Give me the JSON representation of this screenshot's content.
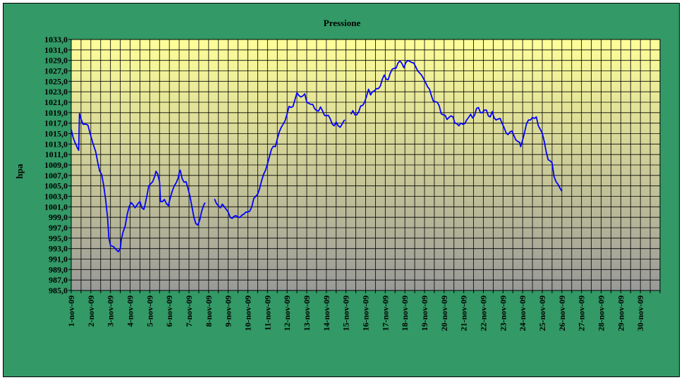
{
  "chart_data": {
    "type": "line",
    "title": "Pressione",
    "xlabel": "",
    "ylabel": "hpa",
    "ylim": [
      985,
      1033
    ],
    "yticks": [
      "1033,0",
      "1031,0",
      "1029,0",
      "1027,0",
      "1025,0",
      "1023,0",
      "1021,0",
      "1019,0",
      "1017,0",
      "1015,0",
      "1013,0",
      "1011,0",
      "1009,0",
      "1007,0",
      "1005,0",
      "1003,0",
      "1001,0",
      "999,0",
      "997,0",
      "995,0",
      "993,0",
      "991,0",
      "989,0",
      "987,0",
      "985,0"
    ],
    "categories": [
      "1-nov-09",
      "2-nov-09",
      "3-nov-09",
      "4-nov-09",
      "5-nov-09",
      "6-nov-09",
      "7-nov-09",
      "8-nov-09",
      "9-nov-09",
      "10-nov-09",
      "11-nov-09",
      "12-nov-09",
      "13-nov-09",
      "14-nov-09",
      "15-nov-09",
      "16-nov-09",
      "17-nov-09",
      "18-nov-09",
      "19-nov-09",
      "20-nov-09",
      "21-nov-09",
      "22-nov-09",
      "23-nov-09",
      "24-nov-09",
      "25-nov-09",
      "26-nov-09",
      "27-nov-09",
      "28-nov-09",
      "29-nov-09",
      "30-nov-09"
    ],
    "grid": true,
    "colors": {
      "frame": "#339966",
      "plot_top": "#ffff99",
      "plot_bottom": "#999999",
      "line": "#0000ff",
      "grid": "#000000"
    },
    "series": [
      {
        "segments": [
          [
            [
              0,
              1015.8
            ],
            [
              0.1,
              1014.2
            ],
            [
              0.2,
              1013.2
            ],
            [
              0.3,
              1012.4
            ],
            [
              0.38,
              1011.8
            ],
            [
              0.42,
              1018.8
            ],
            [
              0.5,
              1017.8
            ],
            [
              0.6,
              1016.8
            ],
            [
              0.75,
              1016.8
            ],
            [
              0.85,
              1016.6
            ],
            [
              0.95,
              1015.2
            ],
            [
              1.1,
              1013.2
            ],
            [
              1.25,
              1011.5
            ],
            [
              1.35,
              1009.5
            ],
            [
              1.45,
              1007.8
            ],
            [
              1.55,
              1007.2
            ],
            [
              1.65,
              1005.2
            ],
            [
              1.75,
              1002.5
            ],
            [
              1.85,
              999.0
            ],
            [
              1.92,
              995.0
            ],
            [
              2.0,
              993.6
            ],
            [
              2.15,
              993.4
            ],
            [
              2.3,
              992.8
            ],
            [
              2.4,
              992.4
            ],
            [
              2.5,
              993.0
            ],
            [
              2.55,
              994.8
            ],
            [
              2.65,
              996.3
            ],
            [
              2.75,
              997.3
            ],
            [
              2.85,
              999.5
            ],
            [
              2.95,
              1001.0
            ],
            [
              3.05,
              1001.8
            ],
            [
              3.15,
              1001.4
            ],
            [
              3.25,
              1000.8
            ],
            [
              3.4,
              1001.6
            ],
            [
              3.5,
              1002.0
            ],
            [
              3.6,
              1000.8
            ],
            [
              3.7,
              1000.5
            ],
            [
              3.75,
              1001.2
            ],
            [
              3.85,
              1003.0
            ],
            [
              3.95,
              1005.0
            ],
            [
              4.05,
              1005.4
            ],
            [
              4.15,
              1005.8
            ],
            [
              4.25,
              1006.8
            ],
            [
              4.32,
              1007.8
            ],
            [
              4.4,
              1007.3
            ],
            [
              4.5,
              1005.8
            ],
            [
              4.55,
              1002.0
            ],
            [
              4.65,
              1002.0
            ],
            [
              4.75,
              1002.4
            ],
            [
              4.85,
              1001.6
            ],
            [
              4.95,
              1001.2
            ],
            [
              5.05,
              1002.8
            ],
            [
              5.15,
              1004.0
            ],
            [
              5.25,
              1005.0
            ],
            [
              5.35,
              1005.6
            ],
            [
              5.45,
              1006.5
            ],
            [
              5.5,
              1007.5
            ],
            [
              5.55,
              1008.0
            ],
            [
              5.65,
              1006.4
            ],
            [
              5.75,
              1005.7
            ],
            [
              5.85,
              1005.8
            ],
            [
              5.95,
              1004.5
            ],
            [
              6.05,
              1003.0
            ],
            [
              6.15,
              1001.0
            ],
            [
              6.25,
              999.0
            ],
            [
              6.35,
              997.8
            ],
            [
              6.45,
              997.5
            ],
            [
              6.55,
              998.5
            ],
            [
              6.65,
              1000.2
            ],
            [
              6.75,
              1001.3
            ],
            [
              6.82,
              1001.8
            ]
          ],
          [
            [
              7.3,
              1002.5
            ],
            [
              7.4,
              1001.6
            ],
            [
              7.5,
              1001.2
            ],
            [
              7.6,
              1000.8
            ],
            [
              7.7,
              1001.5
            ],
            [
              7.8,
              1001.0
            ],
            [
              7.9,
              1000.5
            ],
            [
              8.0,
              1000.0
            ],
            [
              8.1,
              999.0
            ],
            [
              8.2,
              998.8
            ],
            [
              8.3,
              999.2
            ],
            [
              8.4,
              999.3
            ],
            [
              8.5,
              999.0
            ],
            [
              8.6,
              999.0
            ],
            [
              8.7,
              999.4
            ],
            [
              8.8,
              999.6
            ],
            [
              8.9,
              1000.0
            ],
            [
              9.0,
              1000.0
            ],
            [
              9.1,
              1000.2
            ],
            [
              9.2,
              1001.0
            ],
            [
              9.3,
              1002.6
            ],
            [
              9.4,
              1003.0
            ],
            [
              9.5,
              1003.4
            ],
            [
              9.6,
              1004.5
            ],
            [
              9.7,
              1006.0
            ],
            [
              9.8,
              1007.2
            ],
            [
              9.9,
              1008.0
            ],
            [
              10.0,
              1009.2
            ],
            [
              10.1,
              1010.6
            ],
            [
              10.2,
              1012.0
            ],
            [
              10.3,
              1012.6
            ],
            [
              10.4,
              1012.5
            ],
            [
              10.5,
              1014.0
            ],
            [
              10.6,
              1015.3
            ],
            [
              10.7,
              1016.2
            ],
            [
              10.8,
              1016.8
            ],
            [
              10.9,
              1017.5
            ],
            [
              11.0,
              1018.8
            ],
            [
              11.1,
              1020.2
            ],
            [
              11.2,
              1020.0
            ],
            [
              11.3,
              1020.2
            ],
            [
              11.4,
              1021.5
            ],
            [
              11.5,
              1022.8
            ],
            [
              11.6,
              1022.3
            ],
            [
              11.7,
              1022.0
            ],
            [
              11.8,
              1022.2
            ],
            [
              11.9,
              1022.6
            ],
            [
              12.0,
              1021.0
            ],
            [
              12.1,
              1020.8
            ],
            [
              12.2,
              1020.6
            ],
            [
              12.3,
              1020.6
            ],
            [
              12.4,
              1019.8
            ],
            [
              12.5,
              1019.4
            ],
            [
              12.6,
              1019.3
            ],
            [
              12.7,
              1020.1
            ],
            [
              12.8,
              1019.4
            ],
            [
              12.9,
              1018.5
            ],
            [
              13.0,
              1018.4
            ],
            [
              13.1,
              1018.5
            ],
            [
              13.2,
              1017.8
            ],
            [
              13.3,
              1016.8
            ],
            [
              13.4,
              1016.5
            ],
            [
              13.5,
              1017.2
            ],
            [
              13.6,
              1016.5
            ],
            [
              13.7,
              1016.2
            ],
            [
              13.8,
              1016.8
            ],
            [
              13.9,
              1017.5
            ],
            [
              13.95,
              1017.6
            ]
          ],
          [
            [
              14.25,
              1018.7
            ],
            [
              14.35,
              1019.4
            ],
            [
              14.45,
              1018.6
            ],
            [
              14.55,
              1018.6
            ],
            [
              14.65,
              1019.2
            ],
            [
              14.75,
              1020.3
            ],
            [
              14.85,
              1020.4
            ],
            [
              14.95,
              1021.0
            ],
            [
              15.05,
              1022.2
            ],
            [
              15.15,
              1023.5
            ],
            [
              15.25,
              1022.4
            ],
            [
              15.35,
              1023.0
            ],
            [
              15.45,
              1023.2
            ],
            [
              15.55,
              1023.6
            ],
            [
              15.65,
              1023.6
            ],
            [
              15.75,
              1024.1
            ],
            [
              15.85,
              1025.4
            ],
            [
              15.95,
              1026.2
            ],
            [
              16.05,
              1025.4
            ],
            [
              16.15,
              1025.3
            ],
            [
              16.25,
              1026.5
            ],
            [
              16.35,
              1027.3
            ],
            [
              16.45,
              1027.5
            ],
            [
              16.55,
              1027.5
            ],
            [
              16.65,
              1028.5
            ],
            [
              16.75,
              1028.9
            ],
            [
              16.85,
              1028.4
            ],
            [
              16.95,
              1027.6
            ],
            [
              17.05,
              1028.6
            ],
            [
              17.15,
              1029.0
            ],
            [
              17.25,
              1028.8
            ],
            [
              17.35,
              1028.6
            ],
            [
              17.45,
              1028.5
            ],
            [
              17.55,
              1027.8
            ],
            [
              17.65,
              1027.0
            ],
            [
              17.75,
              1026.6
            ],
            [
              17.85,
              1026.2
            ],
            [
              17.95,
              1025.5
            ],
            [
              18.05,
              1024.8
            ],
            [
              18.15,
              1024.0
            ],
            [
              18.25,
              1023.5
            ],
            [
              18.35,
              1022.3
            ],
            [
              18.45,
              1021.2
            ],
            [
              18.55,
              1021.1
            ],
            [
              18.65,
              1021.0
            ],
            [
              18.75,
              1020.3
            ],
            [
              18.85,
              1018.8
            ],
            [
              18.95,
              1018.6
            ],
            [
              19.05,
              1018.5
            ],
            [
              19.15,
              1017.7
            ],
            [
              19.25,
              1018.1
            ],
            [
              19.35,
              1018.4
            ],
            [
              19.45,
              1018.2
            ],
            [
              19.55,
              1017.0
            ],
            [
              19.65,
              1016.9
            ],
            [
              19.75,
              1016.5
            ],
            [
              19.85,
              1017.0
            ],
            [
              19.95,
              1016.8
            ],
            [
              20.05,
              1016.9
            ],
            [
              20.15,
              1017.6
            ],
            [
              20.25,
              1018.1
            ],
            [
              20.35,
              1018.7
            ],
            [
              20.45,
              1018.0
            ],
            [
              20.55,
              1018.5
            ],
            [
              20.65,
              1019.8
            ],
            [
              20.75,
              1020.0
            ],
            [
              20.85,
              1019.0
            ],
            [
              20.95,
              1019.0
            ],
            [
              21.05,
              1019.5
            ],
            [
              21.15,
              1019.5
            ],
            [
              21.25,
              1018.4
            ],
            [
              21.35,
              1018.2
            ],
            [
              21.45,
              1019.2
            ],
            [
              21.55,
              1018.0
            ],
            [
              21.65,
              1017.6
            ],
            [
              21.75,
              1017.8
            ],
            [
              21.85,
              1017.9
            ],
            [
              21.95,
              1017.0
            ],
            [
              22.05,
              1016.2
            ],
            [
              22.15,
              1015.2
            ],
            [
              22.25,
              1014.8
            ],
            [
              22.35,
              1015.3
            ],
            [
              22.45,
              1015.5
            ],
            [
              22.55,
              1014.7
            ],
            [
              22.65,
              1013.8
            ],
            [
              22.75,
              1013.5
            ],
            [
              22.85,
              1013.3
            ],
            [
              22.9,
              1012.5
            ],
            [
              23.0,
              1013.8
            ],
            [
              23.1,
              1015.3
            ],
            [
              23.2,
              1016.9
            ],
            [
              23.3,
              1017.6
            ],
            [
              23.4,
              1017.6
            ],
            [
              23.5,
              1018.1
            ],
            [
              23.6,
              1017.9
            ],
            [
              23.7,
              1018.2
            ],
            [
              23.8,
              1016.5
            ],
            [
              23.9,
              1015.8
            ],
            [
              24.0,
              1015.1
            ],
            [
              24.1,
              1013.5
            ],
            [
              24.2,
              1011.5
            ],
            [
              24.3,
              1010.0
            ],
            [
              24.4,
              1009.8
            ],
            [
              24.5,
              1009.4
            ],
            [
              24.6,
              1006.8
            ],
            [
              24.7,
              1005.8
            ],
            [
              24.8,
              1005.3
            ],
            [
              24.9,
              1004.6
            ],
            [
              25.0,
              1004.0
            ]
          ]
        ]
      }
    ]
  }
}
